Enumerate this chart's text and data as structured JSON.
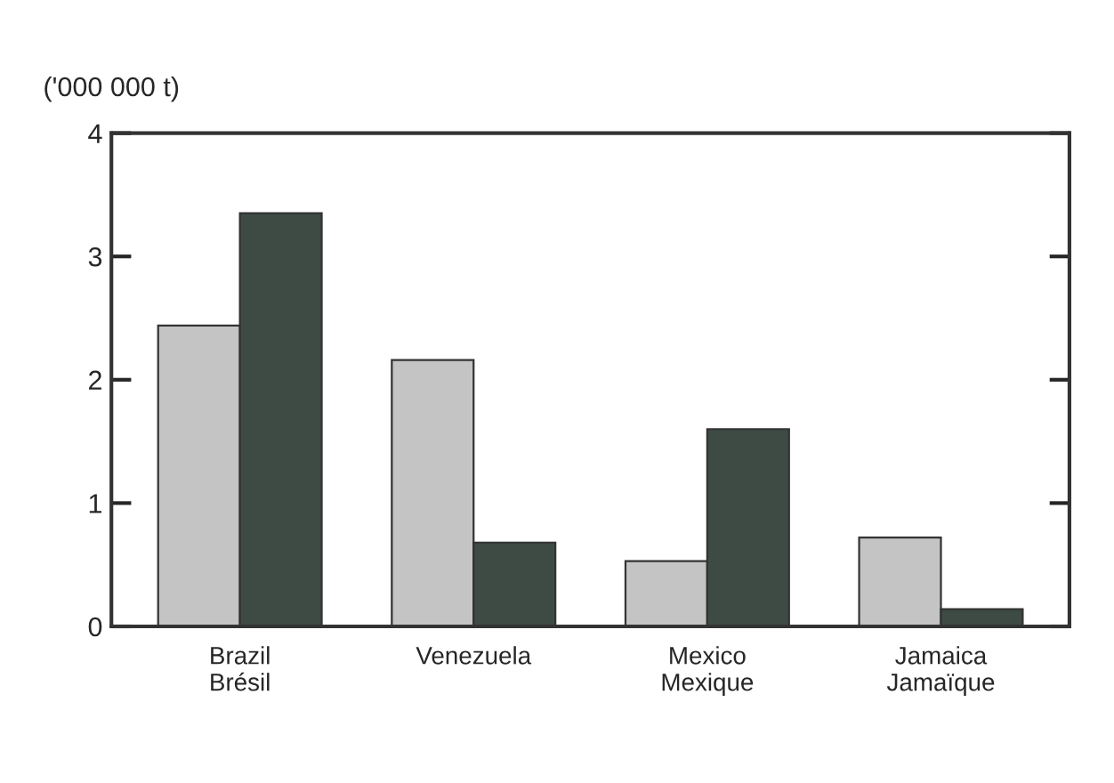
{
  "chart_data": {
    "type": "bar",
    "ylabel": "('000 000 t)",
    "categories": [
      "Brazil\nBrésil",
      "Venezuela",
      "Mexico\nMexique",
      "Jamaica\nJamaïque"
    ],
    "series": [
      {
        "color": "#c4c4c4",
        "values": [
          2.44,
          2.16,
          0.53,
          0.72
        ]
      },
      {
        "color": "#3e4b45",
        "values": [
          3.35,
          0.68,
          1.6,
          0.14
        ]
      }
    ],
    "ylim": [
      0,
      4
    ],
    "yticks": [
      0,
      1,
      2,
      3,
      4
    ],
    "grid": false,
    "legend": false
  }
}
